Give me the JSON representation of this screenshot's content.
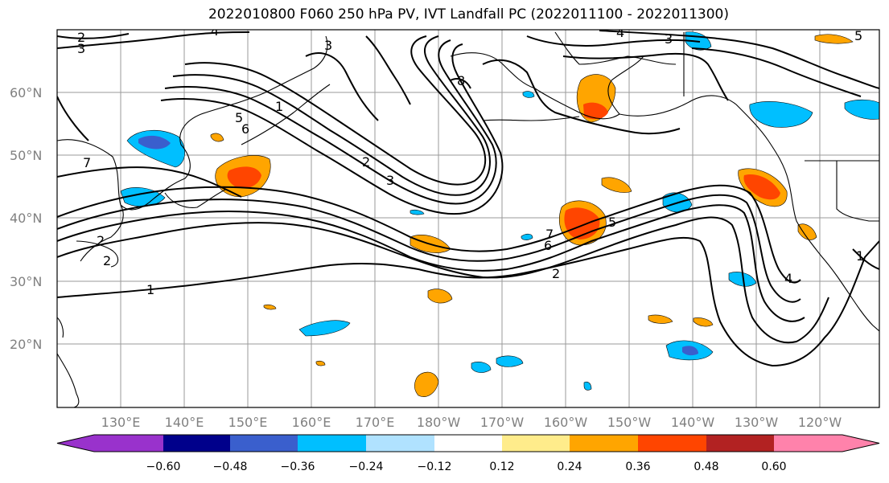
{
  "title": "2022010800 F060 250 hPa PV, IVT Landfall PC (2022011100 - 2022011300)",
  "lat_labels": [
    "60°N",
    "50°N",
    "40°N",
    "30°N",
    "20°N"
  ],
  "lon_labels": [
    "130°E",
    "140°E",
    "150°E",
    "160°E",
    "170°E",
    "180°W",
    "170°W",
    "160°W",
    "150°W",
    "140°W",
    "130°W",
    "120°W"
  ],
  "colorbar": {
    "colors": [
      "#9932cc",
      "#00008b",
      "#3a5fcd",
      "#00bfff",
      "#b0e2ff",
      "#ffffff",
      "#ffec8b",
      "#ffa500",
      "#ff4500",
      "#b22222",
      "#ff82ab"
    ],
    "tick_labels": [
      "−0.60",
      "−0.48",
      "−0.36",
      "−0.24",
      "−0.12",
      "0.12",
      "0.24",
      "0.36",
      "0.48",
      "0.60"
    ]
  },
  "contour_labels": [
    "2",
    "3",
    "4",
    "1",
    "7",
    "5",
    "6",
    "2",
    "3",
    "8",
    "4",
    "3",
    "5",
    "2",
    "3",
    "7",
    "6",
    "5",
    "2",
    "1",
    "2",
    "1",
    "4"
  ]
}
